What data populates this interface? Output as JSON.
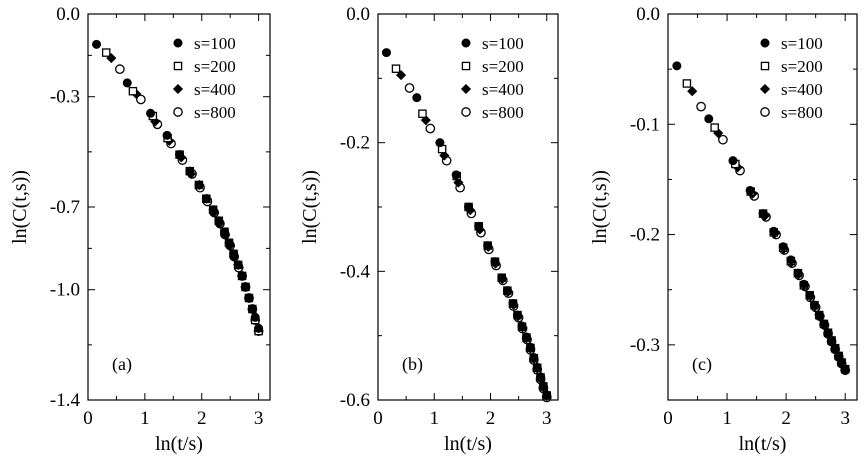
{
  "chart_data": [
    {
      "type": "scatter",
      "panel_label": "(a)",
      "xlabel": "ln(t/s)",
      "ylabel": "ln(C(t,s))",
      "xlim": [
        0,
        3.2
      ],
      "ylim": [
        -1.4,
        0.0
      ],
      "xticks": [
        0,
        1,
        2,
        3
      ],
      "xtick_labels": [
        "0",
        "1",
        "2",
        "3"
      ],
      "yticks": [
        0.0,
        -0.3,
        -0.7,
        -1.0,
        -1.4
      ],
      "ytick_labels": [
        "0.0",
        "-0.3",
        "-0.7",
        "-1.0",
        "-1.4"
      ],
      "legend_position": "top-right",
      "grid": false,
      "series": [
        {
          "name": "s=100",
          "marker": "filled-circle",
          "x": [
            0.15,
            0.69,
            1.1,
            1.39,
            1.61,
            1.79,
            1.95,
            2.08,
            2.2,
            2.3,
            2.4,
            2.48,
            2.56,
            2.64,
            2.71,
            2.77,
            2.83,
            2.89,
            2.94,
            3.0
          ],
          "y": [
            -0.11,
            -0.25,
            -0.36,
            -0.44,
            -0.51,
            -0.57,
            -0.62,
            -0.67,
            -0.71,
            -0.75,
            -0.79,
            -0.83,
            -0.87,
            -0.91,
            -0.95,
            -0.99,
            -1.03,
            -1.07,
            -1.1,
            -1.14
          ]
        },
        {
          "name": "s=200",
          "marker": "open-square",
          "x": [
            0.32,
            0.79,
            1.14,
            1.4,
            1.61,
            1.79,
            1.95,
            2.08,
            2.2,
            2.3,
            2.4,
            2.48,
            2.56,
            2.64,
            2.71,
            2.77,
            2.83,
            2.89,
            2.94,
            3.0
          ],
          "y": [
            -0.14,
            -0.28,
            -0.37,
            -0.45,
            -0.51,
            -0.57,
            -0.62,
            -0.67,
            -0.71,
            -0.75,
            -0.79,
            -0.83,
            -0.87,
            -0.91,
            -0.95,
            -0.99,
            -1.03,
            -1.07,
            -1.11,
            -1.15
          ]
        },
        {
          "name": "s=400",
          "marker": "filled-diamond",
          "x": [
            0.41,
            0.85,
            1.18,
            1.43,
            1.64,
            1.81,
            1.96,
            2.09,
            2.21,
            2.31,
            2.41,
            2.49,
            2.57,
            2.64,
            2.71,
            2.77,
            2.83,
            2.89,
            2.94,
            3.0
          ],
          "y": [
            -0.16,
            -0.29,
            -0.39,
            -0.46,
            -0.52,
            -0.58,
            -0.62,
            -0.67,
            -0.72,
            -0.76,
            -0.8,
            -0.84,
            -0.88,
            -0.91,
            -0.95,
            -0.99,
            -1.03,
            -1.07,
            -1.11,
            -1.15
          ]
        },
        {
          "name": "s=800",
          "marker": "open-circle",
          "x": [
            0.56,
            0.93,
            1.22,
            1.46,
            1.66,
            1.83,
            1.97,
            2.1,
            2.22,
            2.32,
            2.41,
            2.5,
            2.57,
            2.65,
            2.71,
            2.77,
            2.83,
            2.89,
            2.94,
            3.0
          ],
          "y": [
            -0.2,
            -0.31,
            -0.4,
            -0.47,
            -0.53,
            -0.58,
            -0.63,
            -0.68,
            -0.72,
            -0.76,
            -0.8,
            -0.84,
            -0.88,
            -0.92,
            -0.95,
            -0.99,
            -1.03,
            -1.07,
            -1.11,
            -1.15
          ]
        }
      ]
    },
    {
      "type": "scatter",
      "panel_label": "(b)",
      "xlabel": "ln(t/s)",
      "ylabel": "ln(C(t,s))",
      "xlim": [
        0,
        3.2
      ],
      "ylim": [
        -0.6,
        0.0
      ],
      "xticks": [
        0,
        1,
        2,
        3
      ],
      "xtick_labels": [
        "0",
        "1",
        "2",
        "3"
      ],
      "yticks": [
        0.0,
        -0.2,
        -0.4,
        -0.6
      ],
      "ytick_labels": [
        "0.0",
        "-0.2",
        "-0.4",
        "-0.6"
      ],
      "legend_position": "top-right",
      "grid": false,
      "series": [
        {
          "name": "s=100",
          "marker": "filled-circle",
          "x": [
            0.15,
            0.69,
            1.1,
            1.39,
            1.61,
            1.79,
            1.95,
            2.08,
            2.2,
            2.3,
            2.4,
            2.48,
            2.56,
            2.64,
            2.71,
            2.77,
            2.83,
            2.89,
            2.94,
            3.0
          ],
          "y": [
            -0.06,
            -0.13,
            -0.2,
            -0.25,
            -0.3,
            -0.33,
            -0.36,
            -0.385,
            -0.41,
            -0.43,
            -0.45,
            -0.468,
            -0.485,
            -0.502,
            -0.518,
            -0.534,
            -0.549,
            -0.564,
            -0.578,
            -0.592
          ]
        },
        {
          "name": "s=200",
          "marker": "open-square",
          "x": [
            0.32,
            0.79,
            1.14,
            1.4,
            1.61,
            1.79,
            1.95,
            2.08,
            2.2,
            2.3,
            2.4,
            2.48,
            2.56,
            2.64,
            2.71,
            2.77,
            2.83,
            2.89,
            2.94,
            3.0
          ],
          "y": [
            -0.085,
            -0.155,
            -0.21,
            -0.252,
            -0.3,
            -0.33,
            -0.36,
            -0.385,
            -0.41,
            -0.43,
            -0.45,
            -0.468,
            -0.486,
            -0.503,
            -0.519,
            -0.535,
            -0.55,
            -0.565,
            -0.579,
            -0.593
          ]
        },
        {
          "name": "s=400",
          "marker": "filled-diamond",
          "x": [
            0.41,
            0.85,
            1.18,
            1.43,
            1.64,
            1.81,
            1.96,
            2.09,
            2.21,
            2.31,
            2.41,
            2.49,
            2.57,
            2.64,
            2.71,
            2.77,
            2.83,
            2.89,
            2.94,
            3.0
          ],
          "y": [
            -0.095,
            -0.165,
            -0.22,
            -0.262,
            -0.305,
            -0.335,
            -0.362,
            -0.388,
            -0.412,
            -0.432,
            -0.452,
            -0.47,
            -0.487,
            -0.504,
            -0.52,
            -0.536,
            -0.551,
            -0.566,
            -0.58,
            -0.594
          ]
        },
        {
          "name": "s=800",
          "marker": "open-circle",
          "x": [
            0.56,
            0.93,
            1.22,
            1.46,
            1.66,
            1.83,
            1.97,
            2.1,
            2.22,
            2.32,
            2.41,
            2.5,
            2.57,
            2.65,
            2.71,
            2.77,
            2.83,
            2.89,
            2.94,
            3.0
          ],
          "y": [
            -0.115,
            -0.178,
            -0.228,
            -0.27,
            -0.31,
            -0.34,
            -0.366,
            -0.391,
            -0.414,
            -0.434,
            -0.454,
            -0.472,
            -0.489,
            -0.506,
            -0.522,
            -0.538,
            -0.553,
            -0.568,
            -0.582,
            -0.596
          ]
        }
      ]
    },
    {
      "type": "scatter",
      "panel_label": "(c)",
      "xlabel": "ln(t/s)",
      "ylabel": "ln(C(t,s))",
      "xlim": [
        0,
        3.2
      ],
      "ylim": [
        -0.35,
        0.0
      ],
      "xticks": [
        0,
        1,
        2,
        3
      ],
      "xtick_labels": [
        "0",
        "1",
        "2",
        "3"
      ],
      "yticks": [
        0.0,
        -0.1,
        -0.2,
        -0.3
      ],
      "ytick_labels": [
        "0.0",
        "-0.1",
        "-0.2",
        "-0.3"
      ],
      "legend_position": "top-right",
      "grid": false,
      "series": [
        {
          "name": "s=100",
          "marker": "filled-circle",
          "x": [
            0.15,
            0.69,
            1.1,
            1.39,
            1.61,
            1.79,
            1.95,
            2.08,
            2.2,
            2.3,
            2.4,
            2.48,
            2.56,
            2.64,
            2.71,
            2.77,
            2.83,
            2.89,
            2.94,
            3.0
          ],
          "y": [
            -0.047,
            -0.095,
            -0.133,
            -0.16,
            -0.181,
            -0.197,
            -0.211,
            -0.223,
            -0.235,
            -0.245,
            -0.255,
            -0.264,
            -0.273,
            -0.281,
            -0.289,
            -0.296,
            -0.303,
            -0.31,
            -0.316,
            -0.322
          ]
        },
        {
          "name": "s=200",
          "marker": "open-square",
          "x": [
            0.32,
            0.79,
            1.14,
            1.4,
            1.61,
            1.79,
            1.95,
            2.08,
            2.2,
            2.3,
            2.4,
            2.48,
            2.56,
            2.64,
            2.71,
            2.77,
            2.83,
            2.89,
            2.94,
            3.0
          ],
          "y": [
            -0.063,
            -0.103,
            -0.136,
            -0.161,
            -0.181,
            -0.198,
            -0.212,
            -0.224,
            -0.235,
            -0.246,
            -0.255,
            -0.264,
            -0.273,
            -0.281,
            -0.289,
            -0.296,
            -0.303,
            -0.31,
            -0.316,
            -0.322
          ]
        },
        {
          "name": "s=400",
          "marker": "filled-diamond",
          "x": [
            0.41,
            0.85,
            1.18,
            1.43,
            1.64,
            1.81,
            1.96,
            2.09,
            2.21,
            2.31,
            2.41,
            2.49,
            2.57,
            2.64,
            2.71,
            2.77,
            2.83,
            2.89,
            2.94,
            3.0
          ],
          "y": [
            -0.07,
            -0.108,
            -0.139,
            -0.163,
            -0.183,
            -0.199,
            -0.213,
            -0.225,
            -0.236,
            -0.246,
            -0.256,
            -0.265,
            -0.274,
            -0.282,
            -0.289,
            -0.297,
            -0.304,
            -0.31,
            -0.317,
            -0.323
          ]
        },
        {
          "name": "s=800",
          "marker": "open-circle",
          "x": [
            0.56,
            0.93,
            1.22,
            1.46,
            1.66,
            1.83,
            1.97,
            2.1,
            2.22,
            2.32,
            2.41,
            2.5,
            2.57,
            2.65,
            2.71,
            2.77,
            2.83,
            2.89,
            2.94,
            3.0
          ],
          "y": [
            -0.084,
            -0.114,
            -0.142,
            -0.165,
            -0.184,
            -0.2,
            -0.214,
            -0.226,
            -0.237,
            -0.247,
            -0.257,
            -0.266,
            -0.274,
            -0.282,
            -0.29,
            -0.297,
            -0.304,
            -0.311,
            -0.317,
            -0.323
          ]
        }
      ]
    }
  ]
}
